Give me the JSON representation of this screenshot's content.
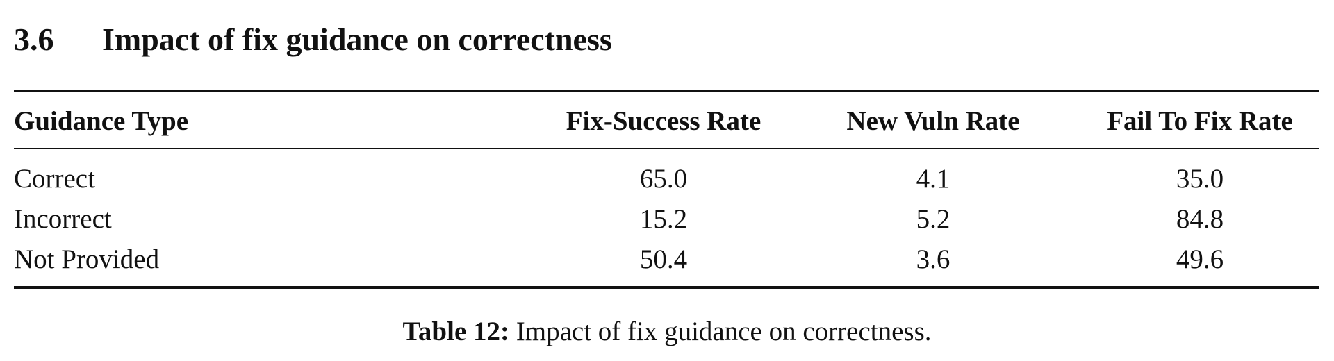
{
  "section": {
    "number": "3.6",
    "title": "Impact of fix guidance on correctness"
  },
  "table": {
    "header": [
      "Guidance Type",
      "Fix-Success Rate",
      "New Vuln Rate",
      "Fail To Fix Rate"
    ],
    "rows": [
      [
        "Correct",
        "65.0",
        "4.1",
        "35.0"
      ],
      [
        "Incorrect",
        "15.2",
        "5.2",
        "84.8"
      ],
      [
        "Not Provided",
        "50.4",
        "3.6",
        "49.6"
      ]
    ]
  },
  "caption": {
    "label": "Table 12:",
    "text": "Impact of fix guidance on correctness."
  }
}
